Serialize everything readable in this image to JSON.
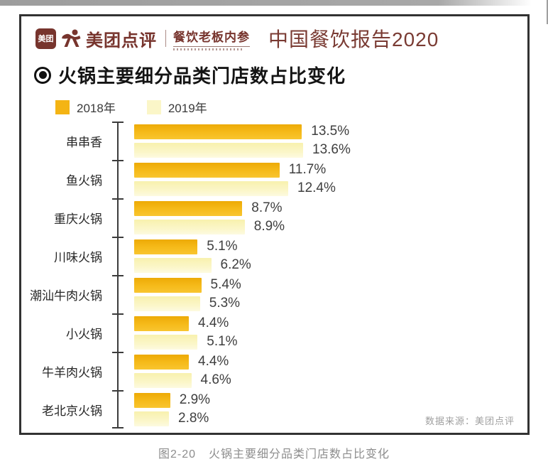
{
  "header": {
    "meituan_badge": "美团",
    "brand": "美团点评",
    "partner": "餐饮老板内参",
    "report_title": "中国餐饮报告2020"
  },
  "section": {
    "title": "火锅主要细分品类门店数占比变化"
  },
  "legend": [
    {
      "label": "2018年",
      "color": "#f4b414"
    },
    {
      "label": "2019年",
      "color": "#fbf6c8"
    }
  ],
  "source": "数据来源：美团点评",
  "caption": {
    "prefix": "图2-20",
    "text": "火锅主要细分品类门店数占比变化"
  },
  "chart_data": {
    "type": "bar",
    "orientation": "horizontal",
    "title": "火锅主要细分品类门店数占比变化",
    "categories": [
      "串串香",
      "鱼火锅",
      "重庆火锅",
      "川味火锅",
      "潮汕牛肉火锅",
      "小火锅",
      "牛羊肉火锅",
      "老北京火锅"
    ],
    "series": [
      {
        "name": "2018年",
        "color": "#f4b414",
        "values": [
          13.5,
          11.7,
          8.7,
          5.1,
          5.4,
          4.4,
          4.4,
          2.9
        ]
      },
      {
        "name": "2019年",
        "color": "#fbf6c8",
        "values": [
          13.6,
          12.4,
          8.9,
          6.2,
          5.3,
          5.1,
          4.6,
          2.8
        ]
      }
    ],
    "value_suffix": "%",
    "xlim": [
      0,
      14
    ],
    "grid": false,
    "legend_position": "top-left",
    "value_labels": true
  }
}
